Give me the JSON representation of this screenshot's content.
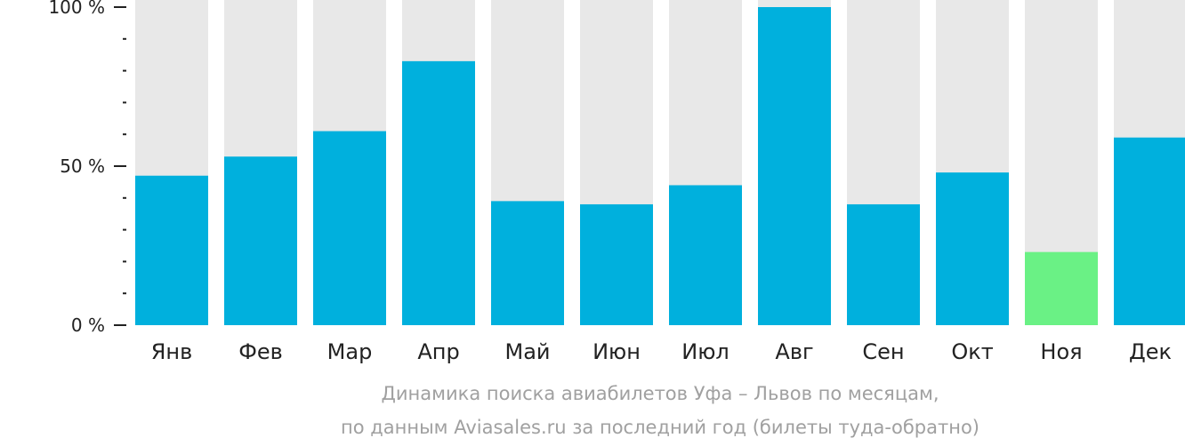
{
  "chart_data": {
    "type": "bar",
    "categories": [
      "Янв",
      "Фев",
      "Мар",
      "Апр",
      "Май",
      "Июн",
      "Июл",
      "Авг",
      "Сен",
      "Окт",
      "Ноя",
      "Дек"
    ],
    "values": [
      47,
      53,
      61,
      83,
      39,
      38,
      44,
      100,
      38,
      48,
      23,
      59
    ],
    "ylim": [
      0,
      100
    ],
    "yticks": [
      {
        "value": 100,
        "label": "100 %"
      },
      {
        "value": 50,
        "label": "50 %"
      },
      {
        "value": 0,
        "label": "0 %"
      }
    ],
    "minor_tick_step": 10,
    "colors": {
      "bar": "#00b0dd",
      "highlight": "#6af185",
      "background_bar": "#e8e8e8",
      "axis": "#222222"
    },
    "highlight_index": 10,
    "caption": [
      "Динамика поиска авиабилетов Уфа – Львов по месяцам,",
      "по данным Aviasales.ru за последний год (билеты туда-обратно)"
    ]
  }
}
